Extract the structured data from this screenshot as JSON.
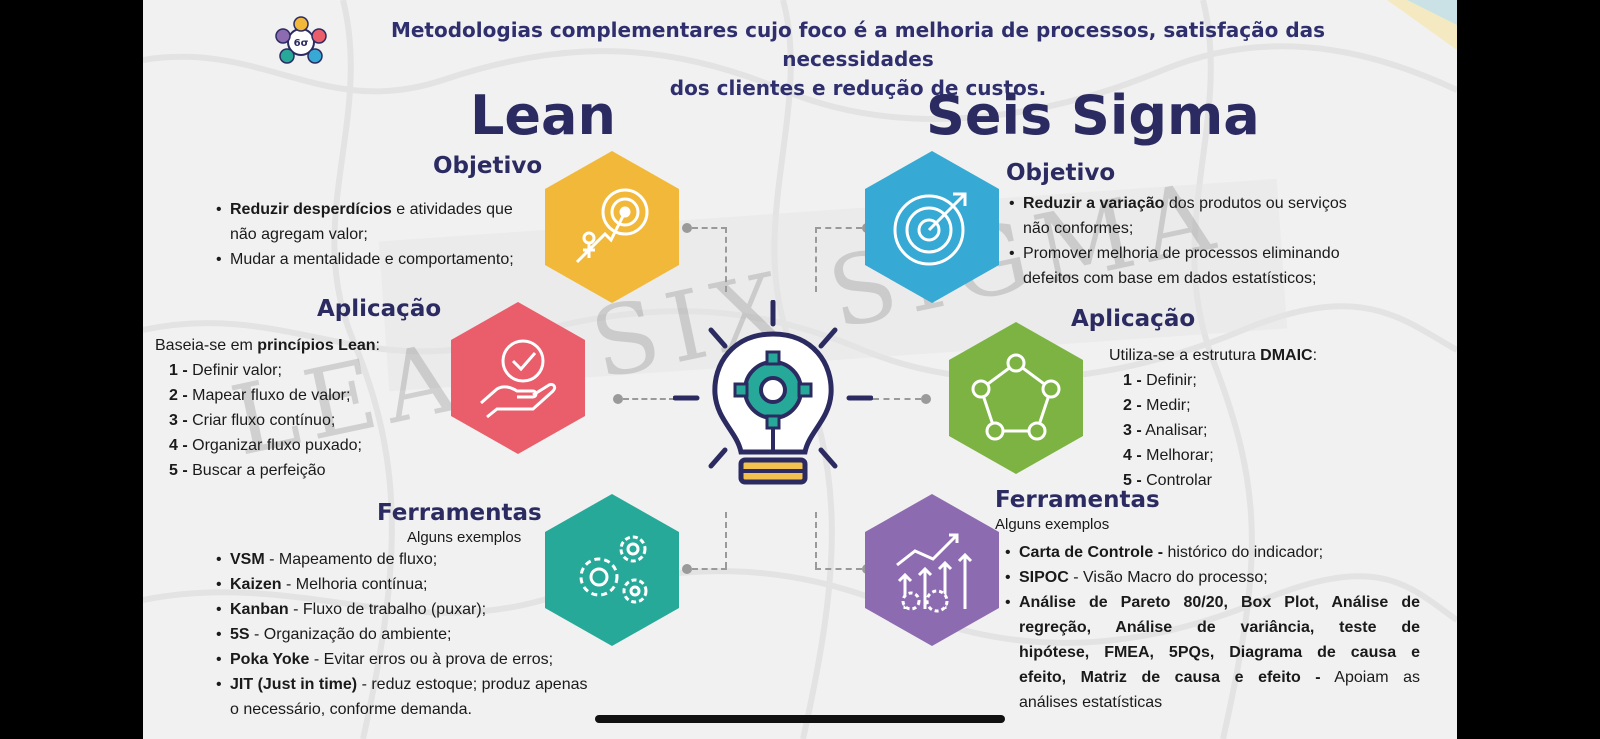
{
  "header": {
    "line1": "Metodologias complementares cujo foco é a melhoria de processos, satisfação das necessidades",
    "line2": "dos clientes e redução de custos."
  },
  "watermark": "LEAN SIX SIGMA",
  "colors": {
    "navy": "#2b2b62",
    "yellow": "#f2b83a",
    "red": "#ea5d6a",
    "teal": "#27a99a",
    "blue": "#36a9d4",
    "green": "#7cb342",
    "purple": "#8d6bb0"
  },
  "lean": {
    "title": "Lean",
    "objetivo": {
      "title": "Objetivo",
      "items": [
        {
          "bold": "Reduzir desperdícios",
          "text": " e atividades que",
          "cont": "não agregam valor;"
        },
        {
          "bold": "",
          "text": "Mudar a mentalidade e comportamento;",
          "cont": ""
        }
      ]
    },
    "aplicacao": {
      "title": "Aplicação",
      "intro": "Baseia-se em ",
      "intro_bold": "princípios Lean",
      "intro_end": ":",
      "steps": [
        {
          "n": "1 -",
          "t": " Definir valor;"
        },
        {
          "n": "2 -",
          "t": " Mapear fluxo de valor;"
        },
        {
          "n": "3 -",
          "t": " Criar fluxo contínuo;"
        },
        {
          "n": "4 -",
          "t": " Organizar fluxo puxado;"
        },
        {
          "n": "5 -",
          "t": " Buscar a perfeição"
        }
      ]
    },
    "ferramentas": {
      "title": "Ferramentas",
      "subtitle": "Alguns exemplos",
      "items": [
        {
          "bold": "VSM",
          "text": " - Mapeamento de fluxo;"
        },
        {
          "bold": "Kaizen",
          "text": " - Melhoria contínua;"
        },
        {
          "bold": "Kanban",
          "text": " - Fluxo de trabalho (puxar);"
        },
        {
          "bold": "5S",
          "text": " - Organização do ambiente;"
        },
        {
          "bold": "Poka Yoke",
          "text": " - Evitar erros ou à prova de erros;"
        },
        {
          "bold": "JIT (Just in time)",
          "text": " - reduz estoque; produz apenas",
          "cont": "o necessário, conforme demanda."
        }
      ]
    }
  },
  "sigma": {
    "title": "Seis Sigma",
    "objetivo": {
      "title": "Objetivo",
      "items": [
        {
          "bold": "Reduzir a variação",
          "text": " dos produtos ou serviços",
          "cont": "não conformes;"
        },
        {
          "bold": "",
          "text": "Promover melhoria de processos eliminando",
          "cont": "defeitos com base em dados estatísticos;"
        }
      ]
    },
    "aplicacao": {
      "title": "Aplicação",
      "intro": "Utiliza-se a estrutura ",
      "intro_bold": "DMAIC",
      "intro_end": ":",
      "steps": [
        {
          "n": "1 -",
          "t": " Definir;"
        },
        {
          "n": "2 -",
          "t": " Medir;"
        },
        {
          "n": "3 -",
          "t": " Analisar;"
        },
        {
          "n": "4 -",
          "t": " Melhorar;"
        },
        {
          "n": "5 -",
          "t": " Controlar"
        }
      ]
    },
    "ferramentas": {
      "title": "Ferramentas",
      "subtitle": "Alguns exemplos",
      "items": [
        {
          "bold": "Carta de Controle -",
          "text": " histórico do indicador;"
        },
        {
          "bold": "SIPOC",
          "text": " - Visão Macro do processo;"
        },
        {
          "bold": "Análise de Pareto 80/20, Box Plot, Análise de",
          "text": ""
        }
      ],
      "para_lines": [
        "regreção, Análise de variância, teste de",
        "hipótese, FMEA, 5PQs, Diagrama de causa e"
      ],
      "para_last_bold": "efeito, Matriz de causa e efeito -",
      "para_last_text": " Apoiam as",
      "para_end": "análises estatísticas"
    }
  },
  "icons": {
    "logo": "six-sigma-gears-logo",
    "center": "lightbulb-gear-icon",
    "lean_obj": "target-arrow-icon",
    "lean_app": "hand-check-icon",
    "lean_tools": "gears-icon",
    "sigma_obj": "target-icon",
    "sigma_app": "pentagon-network-icon",
    "sigma_tools": "growth-chart-icon",
    "logo_label": "6σ"
  }
}
